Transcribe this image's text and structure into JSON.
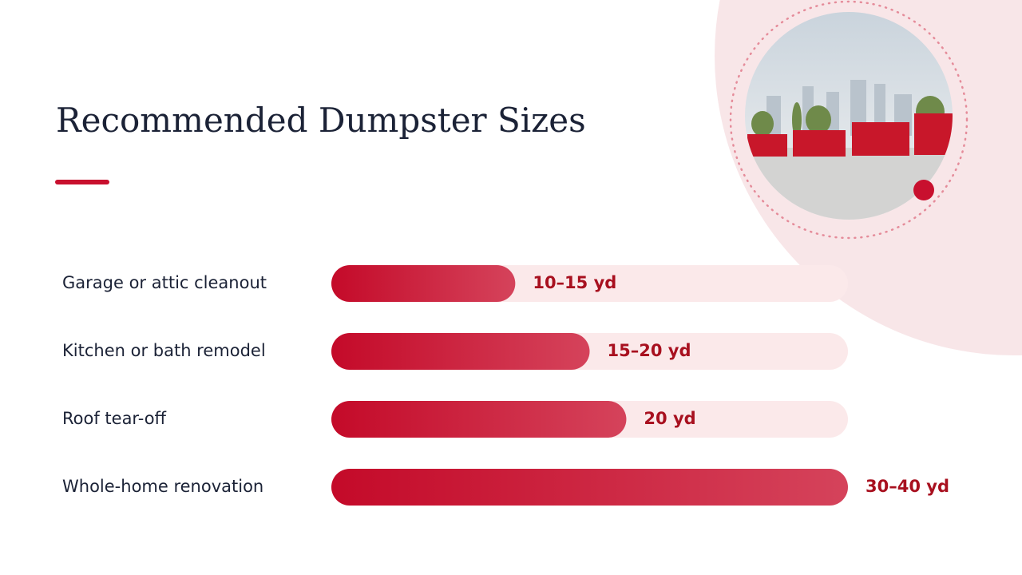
{
  "title": "Recommended Dumpster Sizes",
  "rows": [
    {
      "label": "Garage or attic cleanout",
      "size": "10–15 yd",
      "fill": 0.356
    },
    {
      "label": "Kitchen or bath remodel",
      "size": "15–20 yd",
      "fill": 0.5
    },
    {
      "label": "Roof tear-off",
      "size": "20 yd",
      "fill": 0.571
    },
    {
      "label": "Whole-home renovation",
      "size": "30–40 yd",
      "fill": 1
    }
  ]
}
